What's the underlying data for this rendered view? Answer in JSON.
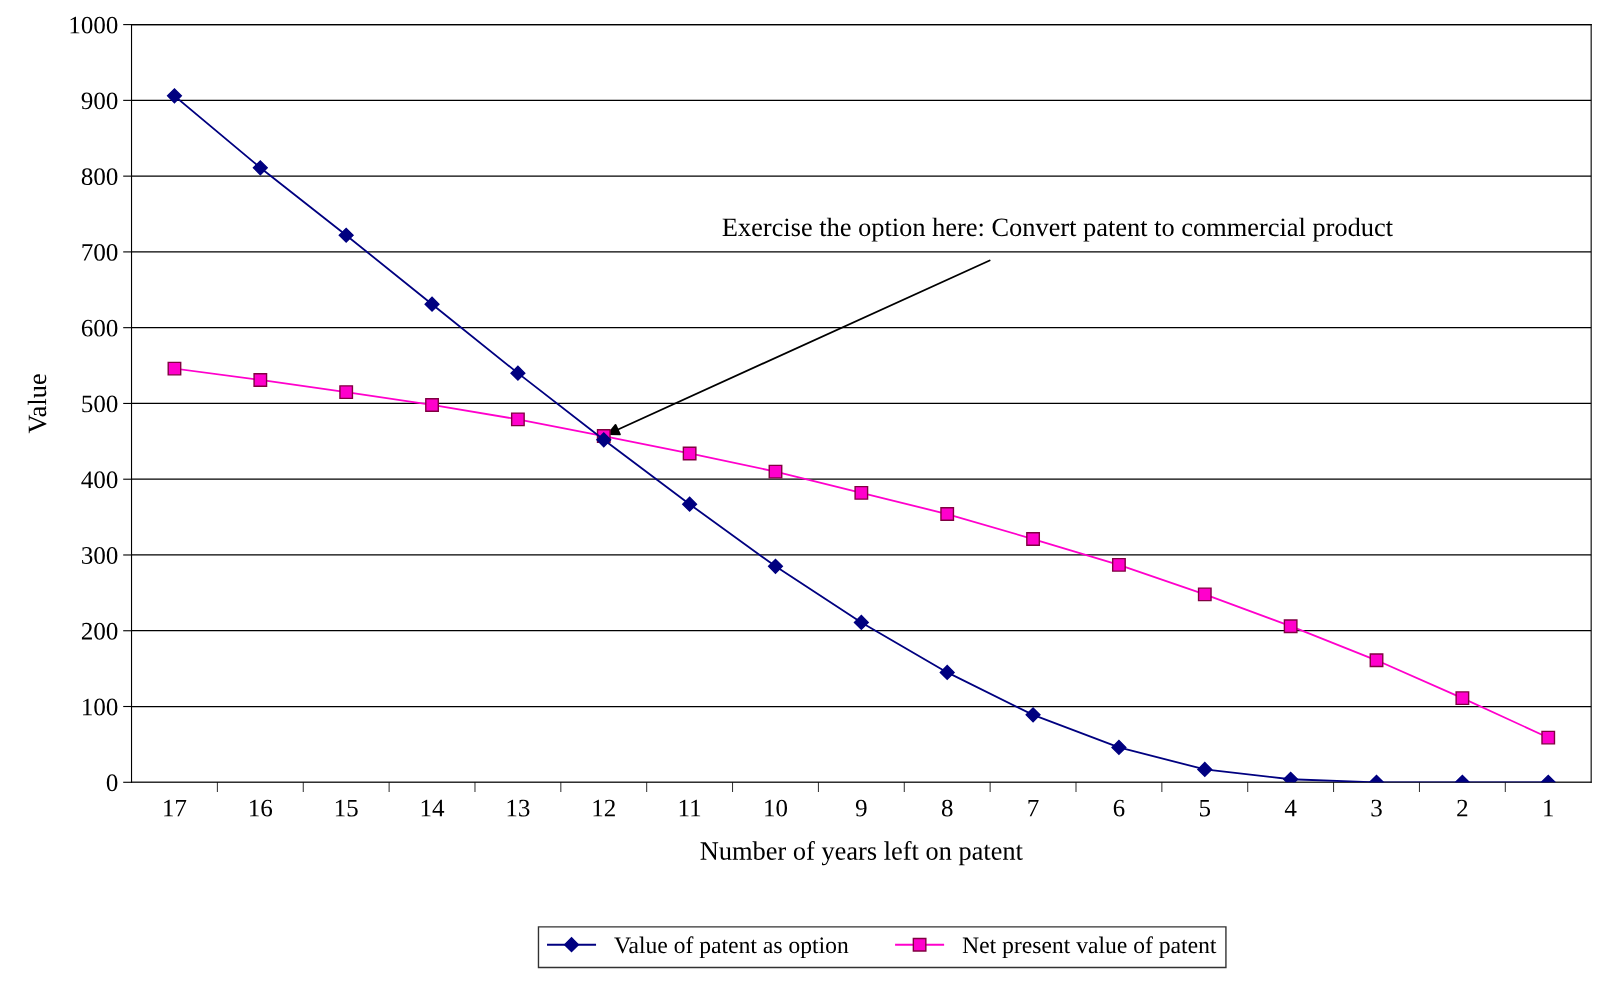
{
  "chart_data": {
    "type": "line",
    "xlabel": "Number of years left on patent",
    "ylabel": "Value",
    "categories": [
      "17",
      "16",
      "15",
      "14",
      "13",
      "12",
      "11",
      "10",
      "9",
      "8",
      "7",
      "6",
      "5",
      "4",
      "3",
      "2",
      "1"
    ],
    "series": [
      {
        "name": "Value of patent as option",
        "color": "#000080",
        "marker": "diamond",
        "values": [
          906,
          811,
          722,
          631,
          540,
          452,
          367,
          285,
          211,
          145,
          89,
          46,
          17,
          4,
          0,
          0,
          0
        ]
      },
      {
        "name": "Net present value of patent",
        "color": "#ff00cc",
        "marker": "square",
        "values": [
          546,
          531,
          515,
          498,
          479,
          457,
          434,
          410,
          382,
          354,
          321,
          287,
          248,
          206,
          161,
          111,
          59
        ]
      }
    ],
    "ylim": [
      0,
      1000
    ],
    "yticks": [
      0,
      100,
      200,
      300,
      400,
      500,
      600,
      700,
      800,
      900,
      1000
    ],
    "grid": "y",
    "legend": "bottom",
    "annotations": [
      {
        "text": "Exercise the option here: Convert patent to commercial product",
        "x": "12",
        "y": 457
      }
    ]
  }
}
